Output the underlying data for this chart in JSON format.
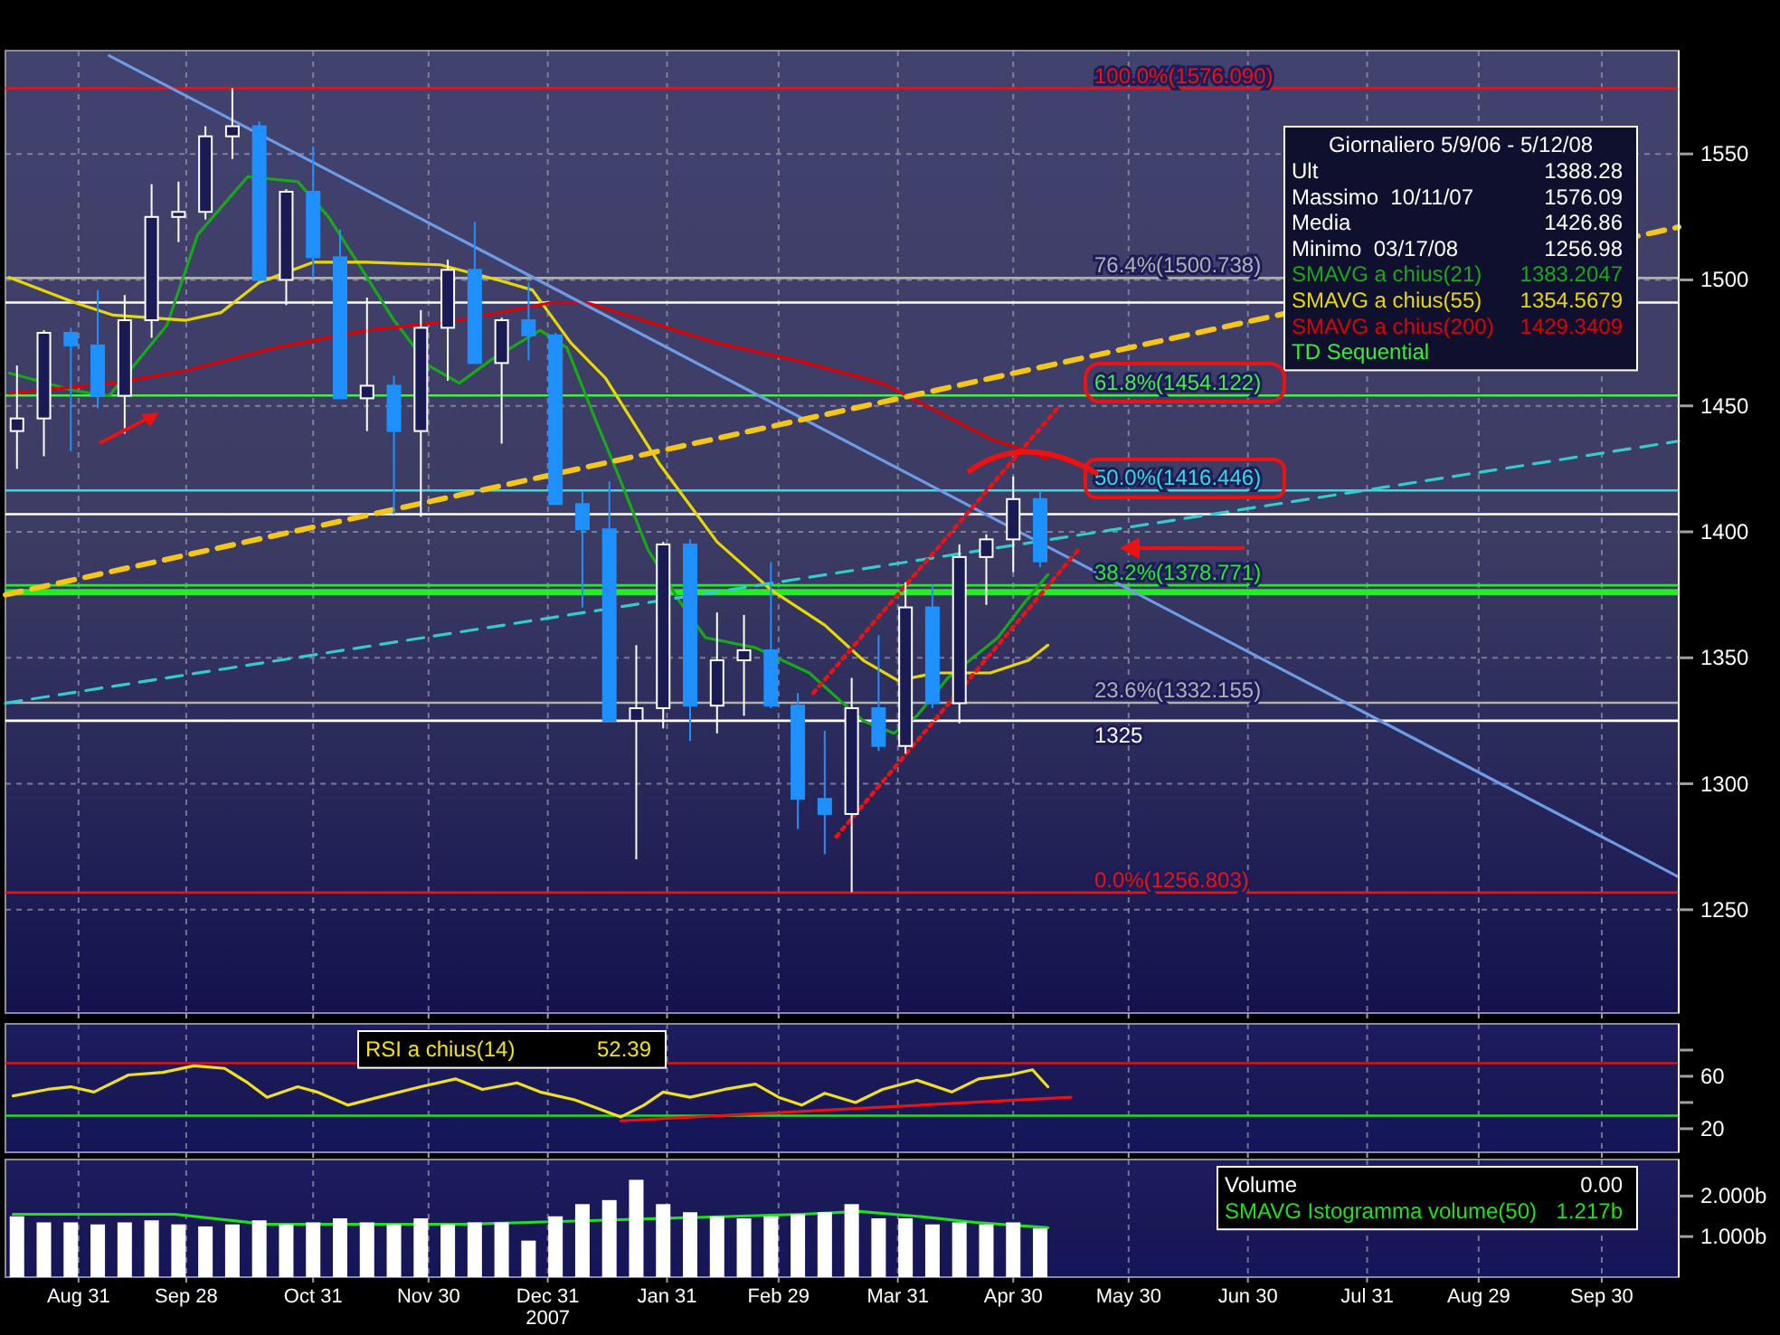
{
  "chart_data": [
    {
      "type": "candlestick",
      "xlim": [
        "2007-08-12",
        "2008-10-20"
      ],
      "ylim": [
        1209,
        1591
      ],
      "yticks": [
        1250,
        1300,
        1350,
        1400,
        1450,
        1500,
        1550
      ],
      "xticks": [
        {
          "value": "2007-08-31",
          "label": null
        },
        {
          "value": "2007-09-28",
          "label": null
        },
        {
          "value": "2007-10-31",
          "label": null
        },
        {
          "value": "2007-11-30",
          "label": null
        },
        {
          "value": "2007-12-31",
          "label": null
        },
        {
          "value": "2008-01-31",
          "label": null
        },
        {
          "value": "2008-02-29",
          "label": null
        },
        {
          "value": "2008-03-31",
          "label": null
        },
        {
          "value": "2008-04-30",
          "label": null
        },
        {
          "value": "2008-05-30",
          "label": null
        },
        {
          "value": "2008-06-30",
          "label": null
        },
        {
          "value": "2008-07-31",
          "label": null
        },
        {
          "value": "2008-08-29",
          "label": null
        },
        {
          "value": "2008-09-30",
          "label": null
        }
      ],
      "tick_labels": "y",
      "grid": true,
      "legend": "top right",
      "x": [
        "2007-08-15",
        "2007-08-22",
        "2007-08-29",
        "2007-09-05",
        "2007-09-12",
        "2007-09-19",
        "2007-09-26",
        "2007-10-03",
        "2007-10-10",
        "2007-10-17",
        "2007-10-24",
        "2007-10-31",
        "2007-11-07",
        "2007-11-14",
        "2007-11-21",
        "2007-11-28",
        "2007-12-05",
        "2007-12-12",
        "2007-12-19",
        "2007-12-26",
        "2008-01-02",
        "2008-01-09",
        "2008-01-16",
        "2008-01-23",
        "2008-01-30",
        "2008-02-06",
        "2008-02-13",
        "2008-02-20",
        "2008-02-27",
        "2008-03-05",
        "2008-03-12",
        "2008-03-19",
        "2008-03-26",
        "2008-04-02",
        "2008-04-09",
        "2008-04-16",
        "2008-04-23",
        "2008-04-30",
        "2008-05-07"
      ],
      "ohlc": [
        [
          1440,
          1466,
          1425,
          1445
        ],
        [
          1445,
          1480,
          1430,
          1479
        ],
        [
          1479,
          1481,
          1432,
          1474
        ],
        [
          1474,
          1496,
          1449,
          1454
        ],
        [
          1454,
          1494,
          1439,
          1484
        ],
        [
          1484,
          1538,
          1477,
          1525
        ],
        [
          1525,
          1539,
          1515,
          1527
        ],
        [
          1527,
          1561,
          1524,
          1557
        ],
        [
          1557,
          1576.09,
          1548,
          1561
        ],
        [
          1561,
          1563,
          1500,
          1500
        ],
        [
          1500,
          1536,
          1490,
          1535
        ],
        [
          1535,
          1553,
          1501,
          1509
        ],
        [
          1509,
          1520,
          1453,
          1453
        ],
        [
          1453,
          1493,
          1440,
          1458
        ],
        [
          1458,
          1462,
          1407,
          1440
        ],
        [
          1440,
          1488,
          1406,
          1481
        ],
        [
          1481,
          1508,
          1460,
          1504
        ],
        [
          1504,
          1523,
          1467,
          1467
        ],
        [
          1467,
          1485,
          1435,
          1484
        ],
        [
          1484,
          1499,
          1468,
          1478
        ],
        [
          1478,
          1479,
          1411,
          1411
        ],
        [
          1411,
          1416,
          1370,
          1401
        ],
        [
          1401,
          1420,
          1325,
          1325
        ],
        [
          1325,
          1355,
          1270,
          1330
        ],
        [
          1330,
          1396,
          1322,
          1395
        ],
        [
          1395,
          1397,
          1317,
          1331
        ],
        [
          1331,
          1368,
          1320,
          1349
        ],
        [
          1349,
          1367,
          1327,
          1353
        ],
        [
          1353,
          1388,
          1330,
          1331
        ],
        [
          1331,
          1336,
          1282,
          1294
        ],
        [
          1294,
          1321,
          1272,
          1288
        ],
        [
          1288,
          1342,
          1256.98,
          1330
        ],
        [
          1330,
          1359,
          1313,
          1315
        ],
        [
          1315,
          1380,
          1312,
          1370
        ],
        [
          1370,
          1379,
          1330,
          1332
        ],
        [
          1332,
          1395,
          1324,
          1390
        ],
        [
          1390,
          1399,
          1371,
          1397
        ],
        [
          1397,
          1422,
          1384,
          1413
        ],
        [
          1413,
          1416,
          1386,
          1388.28
        ]
      ],
      "colors": [
        "#ffffff",
        "#ffffff",
        "#1e90ff",
        "#1e90ff",
        "#ffffff",
        "#ffffff",
        "#ffffff",
        "#ffffff",
        "#ffffff",
        "#1e90ff",
        "#ffffff",
        "#1e90ff",
        "#1e90ff",
        "#ffffff",
        "#1e90ff",
        "#ffffff",
        "#ffffff",
        "#1e90ff",
        "#ffffff",
        "#1e90ff",
        "#1e90ff",
        "#1e90ff",
        "#1e90ff",
        "#ffffff",
        "#ffffff",
        "#1e90ff",
        "#ffffff",
        "#ffffff",
        "#1e90ff",
        "#1e90ff",
        "#1e90ff",
        "#ffffff",
        "#1e90ff",
        "#ffffff",
        "#1e90ff",
        "#ffffff",
        "#ffffff",
        "#ffffff",
        "#1e90ff"
      ],
      "series": [
        {
          "type": "line",
          "name": "SMAVG a chius(21)",
          "color": "#18a818",
          "x": [
            "2007-08-13",
            "2007-08-30",
            "2007-09-08",
            "2007-09-23",
            "2007-10-01",
            "2007-10-14",
            "2007-10-27",
            "2007-11-04",
            "2007-11-14",
            "2007-11-21",
            "2007-11-30",
            "2007-12-08",
            "2007-12-16",
            "2007-12-29",
            "2008-01-05",
            "2008-01-12",
            "2008-01-19",
            "2008-01-26",
            "2008-02-03",
            "2008-02-10",
            "2008-02-23",
            "2008-03-08",
            "2008-03-16",
            "2008-03-22",
            "2008-03-30",
            "2008-04-05",
            "2008-04-13",
            "2008-04-26",
            "2008-05-03",
            "2008-05-09"
          ],
          "values": [
            1463,
            1456,
            1454,
            1482,
            1518,
            1541,
            1539,
            1525,
            1501,
            1484,
            1466,
            1459,
            1468,
            1480,
            1473,
            1446,
            1420,
            1393,
            1373,
            1358,
            1354,
            1344,
            1333,
            1325,
            1320,
            1327,
            1342,
            1358,
            1372,
            1383
          ]
        },
        {
          "type": "line",
          "name": "SMAVG a chius(55)",
          "color": "#e8d800",
          "x": [
            "2007-08-13",
            "2007-08-30",
            "2007-09-09",
            "2007-09-28",
            "2007-10-07",
            "2007-10-17",
            "2007-10-31",
            "2007-11-14",
            "2007-12-03",
            "2007-12-18",
            "2007-12-27",
            "2008-01-06",
            "2008-01-15",
            "2008-01-29",
            "2008-02-13",
            "2008-02-27",
            "2008-03-12",
            "2008-03-22",
            "2008-03-31",
            "2008-04-10",
            "2008-04-24",
            "2008-05-04",
            "2008-05-09"
          ],
          "values": [
            1501,
            1491,
            1486,
            1484,
            1487,
            1499,
            1507,
            1507,
            1506,
            1500,
            1496,
            1475,
            1461,
            1427,
            1396,
            1377,
            1363,
            1349,
            1341,
            1344,
            1344,
            1349,
            1355
          ]
        },
        {
          "type": "line",
          "name": "SMAVG a chius(200)",
          "color": "#dd0000",
          "x": [
            "2007-08-13",
            "2007-09-09",
            "2007-09-28",
            "2007-10-21",
            "2007-11-14",
            "2007-12-08",
            "2008-01-01",
            "2008-01-10",
            "2008-02-13",
            "2008-03-05",
            "2008-03-27",
            "2008-04-24",
            "2008-05-04",
            "2008-05-09"
          ],
          "values": [
            1455,
            1459,
            1464,
            1473,
            1480,
            1484,
            1491,
            1491,
            1475,
            1468,
            1459,
            1437,
            1432,
            1429
          ]
        },
        {
          "type": "line",
          "color": "#6f9be6",
          "x": [
            "2007-09-08",
            "2008-10-20"
          ],
          "values": [
            1589,
            1263
          ]
        },
        {
          "type": "line",
          "color": "#f5c518",
          "line_style": "dashed",
          "x": [
            "2007-08-12",
            "2008-10-20"
          ],
          "values": [
            1375,
            1521
          ]
        },
        {
          "type": "line",
          "color": "#33cccc",
          "line_style": "dashed",
          "x": [
            "2007-08-12",
            "2008-10-20"
          ],
          "values": [
            1332,
            1436
          ]
        },
        {
          "type": "line",
          "color": "#ee1111",
          "line_style": "dotted",
          "x": [
            "2008-03-09",
            "2008-05-12"
          ],
          "values": [
            1336,
            1450
          ]
        },
        {
          "type": "line",
          "color": "#ee1111",
          "line_style": "dotted",
          "x": [
            "2008-03-15",
            "2008-05-17"
          ],
          "values": [
            1279,
            1393
          ]
        }
      ],
      "ref_lines": [
        {
          "axis": "y",
          "value": 1576.09,
          "label": "100.0%(1576.090)",
          "color": "#ee1111"
        },
        {
          "axis": "y",
          "value": 1500.738,
          "label": "76.4%(1500.738)",
          "color": "#b0b0b0"
        },
        {
          "axis": "y",
          "value": 1491,
          "label": null,
          "color": "#ffffff"
        },
        {
          "axis": "y",
          "value": 1454.122,
          "label": "61.8%(1454.122)",
          "color": "#44ee44"
        },
        {
          "axis": "y",
          "value": 1416.446,
          "label": "50.0%(1416.446)",
          "color": "#33dddd"
        },
        {
          "axis": "y",
          "value": 1407,
          "label": null,
          "color": "#ffffff"
        },
        {
          "axis": "y",
          "value": 1378.771,
          "label": "38.2%(1378.771)",
          "color": "#22ee22"
        },
        {
          "axis": "y",
          "value": 1376,
          "label": null,
          "color": "#22ee22"
        },
        {
          "axis": "y",
          "value": 1332.155,
          "label": "23.6%(1332.155)",
          "color": "#b0b0b0"
        },
        {
          "axis": "y",
          "value": 1325,
          "label": "1325",
          "color": "#ffffff"
        },
        {
          "axis": "y",
          "value": 1256.803,
          "label": "0.0%(1256.803)",
          "color": "#ee1111"
        }
      ],
      "annotations": [
        "Giornaliero 5/9/06 - 5/12/08",
        "Ult",
        "1388.28",
        "Massimo  10/11/07",
        "1576.09",
        "Media",
        "1426.86",
        "Minimo  03/17/08",
        "1256.98",
        "1383.2047",
        "1354.5679",
        "1429.3409",
        "TD Sequential"
      ]
    },
    {
      "type": "line",
      "xlim": [
        "2007-08-12",
        "2008-10-20"
      ],
      "ylim": [
        2,
        100
      ],
      "yticks": [
        {
          "value": 80,
          "label": null
        },
        60,
        {
          "value": 40,
          "label": null
        },
        20
      ],
      "xticks": [
        {
          "value": "2007-08-31",
          "label": null
        },
        {
          "value": "2007-09-28",
          "label": null
        },
        {
          "value": "2007-10-31",
          "label": null
        },
        {
          "value": "2007-11-30",
          "label": null
        },
        {
          "value": "2007-12-31",
          "label": null
        },
        {
          "value": "2008-01-31",
          "label": null
        },
        {
          "value": "2008-02-29",
          "label": null
        },
        {
          "value": "2008-03-31",
          "label": null
        },
        {
          "value": "2008-04-30",
          "label": null
        },
        {
          "value": "2008-05-30",
          "label": null
        },
        {
          "value": "2008-06-30",
          "label": null
        },
        {
          "value": "2008-07-31",
          "label": null
        },
        {
          "value": "2008-08-29",
          "label": null
        },
        {
          "value": "2008-09-30",
          "label": null
        }
      ],
      "tick_labels": "y",
      "grid": "x",
      "legend": "top left",
      "series": [
        {
          "name": "RSI a chius(14)",
          "color": "#f0e020",
          "x": [
            "2007-08-14",
            "2007-08-23",
            "2007-08-29",
            "2007-09-04",
            "2007-09-13",
            "2007-09-22",
            "2007-09-30",
            "2007-10-08",
            "2007-10-14",
            "2007-10-19",
            "2007-10-27",
            "2007-11-01",
            "2007-11-09",
            "2007-11-17",
            "2007-11-28",
            "2007-12-07",
            "2007-12-14",
            "2007-12-23",
            "2007-12-29",
            "2008-01-07",
            "2008-01-19",
            "2008-01-25",
            "2008-01-30",
            "2008-02-06",
            "2008-02-15",
            "2008-02-23",
            "2008-02-29",
            "2008-03-06",
            "2008-03-12",
            "2008-03-20",
            "2008-03-27",
            "2008-04-05",
            "2008-04-14",
            "2008-04-21",
            "2008-04-29",
            "2008-05-05",
            "2008-05-09"
          ],
          "values": [
            45,
            50,
            52,
            48,
            61,
            63,
            68,
            66,
            55,
            44,
            52,
            48,
            38,
            44,
            52,
            58,
            50,
            55,
            48,
            42,
            29,
            38,
            48,
            44,
            50,
            54,
            44,
            38,
            47,
            40,
            50,
            57,
            48,
            58,
            61,
            65,
            52
          ]
        },
        {
          "color": "#ee1111",
          "x": [
            "2008-01-19",
            "2008-05-15"
          ],
          "values": [
            26,
            44
          ]
        }
      ],
      "ref_lines": [
        {
          "axis": "y",
          "value": 70,
          "label": null,
          "color": "#dd1111"
        },
        {
          "axis": "y",
          "value": 30,
          "label": null,
          "color": "#22dd22"
        }
      ],
      "annotations": [
        "52.39"
      ]
    },
    {
      "type": "bar",
      "xlim": [
        "2007-08-12",
        "2008-10-20"
      ],
      "ylim": [
        0,
        2.9
      ],
      "yticks": [
        {
          "value": 1,
          "label": "1.000b"
        },
        {
          "value": 2,
          "label": "2.000b"
        }
      ],
      "xticks": [
        {
          "value": "2007-08-31",
          "label": "Aug 31"
        },
        {
          "value": "2007-09-28",
          "label": "Sep 28"
        },
        {
          "value": "2007-10-31",
          "label": "Oct 31"
        },
        {
          "value": "2007-11-30",
          "label": "Nov 30"
        },
        {
          "value": "2007-12-31",
          "label": "Dec 31\n2007"
        },
        {
          "value": "2008-01-31",
          "label": "Jan 31"
        },
        {
          "value": "2008-02-29",
          "label": "Feb 29"
        },
        {
          "value": "2008-03-31",
          "label": "Mar 31"
        },
        {
          "value": "2008-04-30",
          "label": "Apr 30"
        },
        {
          "value": "2008-05-30",
          "label": "May 30"
        },
        {
          "value": "2008-06-30",
          "label": "Jun 30"
        },
        {
          "value": "2008-07-31",
          "label": "Jul 31"
        },
        {
          "value": "2008-08-29",
          "label": "Aug 29"
        },
        {
          "value": "2008-09-30",
          "label": "Sep 30"
        }
      ],
      "grid": "x",
      "color": "#ffffff",
      "x": [
        "2007-08-15",
        "2007-08-22",
        "2007-08-29",
        "2007-09-05",
        "2007-09-12",
        "2007-09-19",
        "2007-09-26",
        "2007-10-03",
        "2007-10-10",
        "2007-10-17",
        "2007-10-24",
        "2007-10-31",
        "2007-11-07",
        "2007-11-14",
        "2007-11-21",
        "2007-11-28",
        "2007-12-05",
        "2007-12-12",
        "2007-12-19",
        "2007-12-26",
        "2008-01-02",
        "2008-01-09",
        "2008-01-16",
        "2008-01-23",
        "2008-01-30",
        "2008-02-06",
        "2008-02-13",
        "2008-02-20",
        "2008-02-27",
        "2008-03-05",
        "2008-03-12",
        "2008-03-19",
        "2008-03-26",
        "2008-04-02",
        "2008-04-09",
        "2008-04-16",
        "2008-04-23",
        "2008-04-30",
        "2008-05-07"
      ],
      "values": [
        1.5,
        1.35,
        1.35,
        1.3,
        1.35,
        1.4,
        1.3,
        1.25,
        1.3,
        1.4,
        1.3,
        1.35,
        1.45,
        1.35,
        1.3,
        1.45,
        1.3,
        1.35,
        1.35,
        0.9,
        1.5,
        1.8,
        1.9,
        2.4,
        1.8,
        1.6,
        1.5,
        1.45,
        1.5,
        1.55,
        1.6,
        1.8,
        1.45,
        1.45,
        1.3,
        1.35,
        1.3,
        1.35,
        1.2
      ],
      "series": [
        {
          "type": "line",
          "color": "#22dd22",
          "x": [
            "2007-08-14",
            "2007-09-25",
            "2007-10-19",
            "2007-12-09",
            "2007-12-26",
            "2008-01-13",
            "2008-03-06",
            "2008-03-21",
            "2008-04-05",
            "2008-04-20",
            "2008-05-09"
          ],
          "values": [
            1.55,
            1.55,
            1.3,
            1.3,
            1.35,
            1.4,
            1.55,
            1.62,
            1.5,
            1.35,
            1.22
          ]
        }
      ],
      "annotations": [
        "Volume",
        "0.00",
        "SMAVG Istogramma volume(50)",
        "1.217b"
      ]
    }
  ]
}
